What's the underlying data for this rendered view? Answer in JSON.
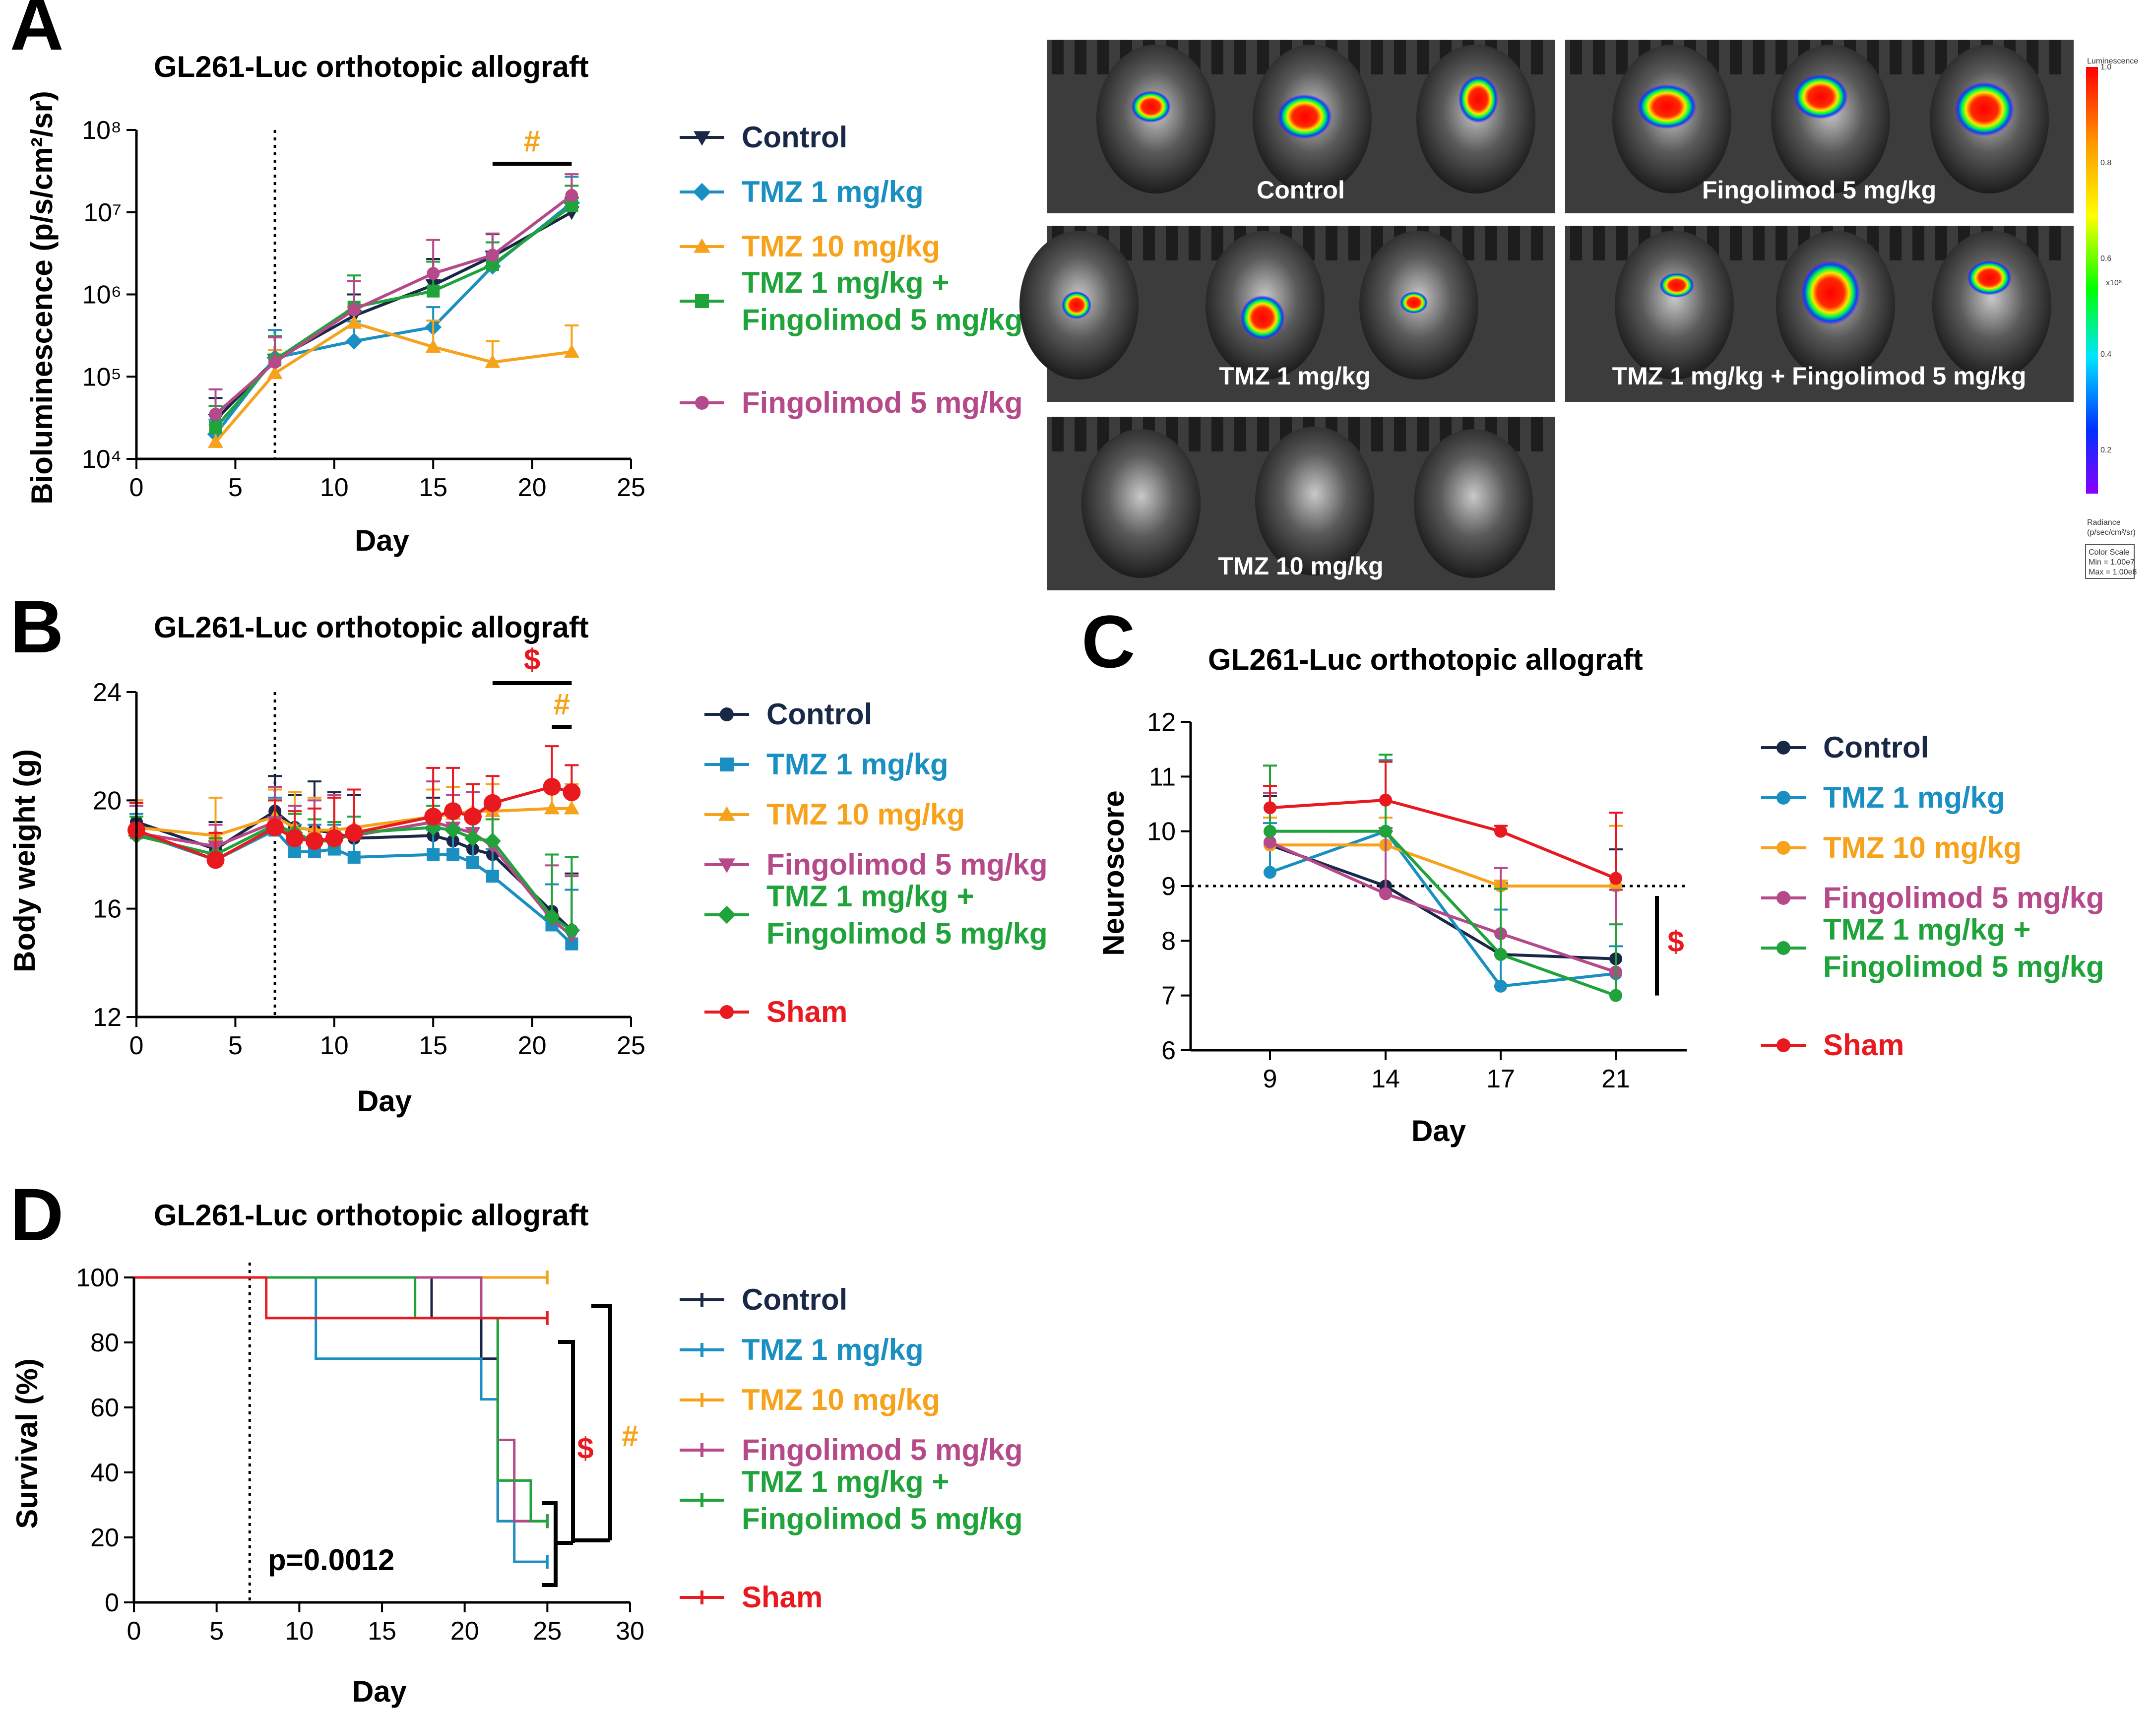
{
  "colors": {
    "control": "#1a2847",
    "tmz1": "#1a8fc2",
    "tmz10": "#f7a21b",
    "fingolimod": "#b5498a",
    "combo": "#1fa33a",
    "sham": "#e8191f",
    "axis": "#000000"
  },
  "chart_data": [
    {
      "id": "A",
      "type": "line",
      "letter": "A",
      "title": "GL261-Luc orthotopic allograft",
      "xlabel": "Day",
      "ylabel": "Bioluminescence (p/s/cm²/sr)",
      "yscale": "log",
      "xlim": [
        0,
        25
      ],
      "ylim": [
        10000,
        100000000
      ],
      "xticks": [
        0,
        5,
        10,
        15,
        20,
        25
      ],
      "ytick_labels": [
        "10⁴",
        "10⁵",
        "10⁶",
        "10⁷",
        "10⁸"
      ],
      "treatment_start_day": 7,
      "significance": [
        {
          "symbol": "#",
          "from": 18,
          "to": 22,
          "color": "#f7a21b"
        }
      ],
      "series": [
        {
          "name": "Control",
          "key": "control",
          "marker": "triangle-down",
          "x": [
            4,
            7,
            11,
            15,
            18,
            22
          ],
          "y": [
            30000,
            160000,
            550000,
            1300000,
            2900000,
            10000000
          ],
          "err": [
            25000,
            150000,
            450000,
            1400000,
            2500000,
            5000000
          ]
        },
        {
          "name": "TMZ 1 mg/kg",
          "key": "tmz1",
          "marker": "diamond",
          "x": [
            4,
            7,
            11,
            15,
            18,
            22
          ],
          "y": [
            20000,
            170000,
            270000,
            400000,
            2200000,
            13000000
          ],
          "err": [
            10000,
            200000,
            200000,
            300000,
            1000000,
            14000000
          ]
        },
        {
          "name": "TMZ 10 mg/kg",
          "key": "tmz10",
          "marker": "triangle-up",
          "x": [
            4,
            7,
            11,
            15,
            18,
            22
          ],
          "y": [
            16000,
            110000,
            450000,
            230000,
            150000,
            200000
          ],
          "err": [
            10000,
            100000,
            250000,
            250000,
            120000,
            220000
          ]
        },
        {
          "name": "TMZ 1 mg/kg + Fingolimod 5 mg/kg",
          "key": "combo",
          "marker": "square",
          "x": [
            4,
            7,
            11,
            15,
            18,
            22
          ],
          "y": [
            24000,
            160000,
            700000,
            1100000,
            2300000,
            12000000
          ],
          "err": [
            20000,
            150000,
            1000000,
            1400000,
            2000000,
            9000000
          ]
        },
        {
          "name": "Fingolimod 5 mg/kg",
          "key": "fingolimod",
          "marker": "circle",
          "x": [
            4,
            7,
            11,
            15,
            18,
            22
          ],
          "y": [
            35000,
            150000,
            650000,
            1800000,
            3000000,
            16000000
          ],
          "err": [
            35000,
            150000,
            800000,
            2800000,
            2500000,
            13000000
          ]
        }
      ],
      "legend": [
        {
          "label": "Control",
          "key": "control",
          "marker": "triangle-down"
        },
        {
          "label": "TMZ 1 mg/kg",
          "key": "tmz1",
          "marker": "diamond"
        },
        {
          "label": "TMZ 10 mg/kg",
          "key": "tmz10",
          "marker": "triangle-up"
        },
        {
          "label": [
            "TMZ 1 mg/kg +",
            "Fingolimod 5 mg/kg"
          ],
          "key": "combo",
          "marker": "square"
        },
        {
          "label": "Fingolimod 5 mg/kg",
          "key": "fingolimod",
          "marker": "circle"
        }
      ]
    },
    {
      "id": "B",
      "type": "line",
      "letter": "B",
      "title": "GL261-Luc orthotopic allograft",
      "xlabel": "Day",
      "ylabel": "Body weight (g)",
      "xlim": [
        0,
        25
      ],
      "ylim": [
        12,
        24
      ],
      "xticks": [
        0,
        5,
        10,
        15,
        20,
        25
      ],
      "yticks": [
        12,
        16,
        20,
        24
      ],
      "treatment_start_day": 7,
      "significance": [
        {
          "symbol": "$",
          "from": 18,
          "to": 22,
          "color": "#e8191f"
        },
        {
          "symbol": "#",
          "from": 21,
          "to": 22,
          "color": "#f7a21b"
        }
      ],
      "series": [
        {
          "name": "Control",
          "key": "control",
          "marker": "circle",
          "x": [
            0,
            4,
            7,
            8,
            9,
            10,
            11,
            15,
            16,
            17,
            18,
            21,
            22
          ],
          "y": [
            19.2,
            18.2,
            19.6,
            19.0,
            18.9,
            18.8,
            18.6,
            18.7,
            18.5,
            18.2,
            18.0,
            15.9,
            15.2
          ],
          "err": [
            0.8,
            1.0,
            1.3,
            1.2,
            1.8,
            1.5,
            1.6,
            1.4,
            1.3,
            1.3,
            1.6,
            2.1,
            2.1
          ]
        },
        {
          "name": "TMZ 1 mg/kg",
          "key": "tmz1",
          "marker": "square",
          "x": [
            0,
            4,
            7,
            8,
            9,
            10,
            11,
            15,
            16,
            17,
            18,
            21,
            22
          ],
          "y": [
            18.8,
            17.8,
            18.9,
            18.1,
            18.1,
            18.2,
            17.9,
            18.0,
            18.0,
            17.7,
            17.2,
            15.4,
            14.7
          ],
          "err": [
            0.7,
            0.6,
            1.2,
            1.0,
            1.0,
            0.9,
            1.0,
            0.9,
            1.0,
            0.9,
            1.0,
            1.5,
            2.0
          ]
        },
        {
          "name": "TMZ 10 mg/kg",
          "key": "tmz10",
          "marker": "triangle-up",
          "x": [
            0,
            4,
            7,
            8,
            9,
            10,
            11,
            15,
            16,
            17,
            18,
            21,
            22
          ],
          "y": [
            19.0,
            18.7,
            19.4,
            19.0,
            18.9,
            18.9,
            19.0,
            19.4,
            19.5,
            19.6,
            19.6,
            19.7,
            19.7
          ],
          "err": [
            1.0,
            1.4,
            1.0,
            1.3,
            1.2,
            1.3,
            1.4,
            1.0,
            1.0,
            1.0,
            1.0,
            1.0,
            0.9
          ]
        },
        {
          "name": "Fingolimod 5 mg/kg",
          "key": "fingolimod",
          "marker": "triangle-down",
          "x": [
            0,
            4,
            7,
            8,
            9,
            10,
            11,
            15,
            16,
            17,
            18,
            21,
            22
          ],
          "y": [
            18.8,
            18.3,
            19.2,
            18.6,
            18.5,
            18.6,
            18.7,
            19.2,
            19.0,
            18.8,
            18.3,
            15.6,
            15.0
          ],
          "err": [
            1.0,
            0.8,
            1.3,
            1.2,
            1.5,
            1.6,
            1.7,
            1.5,
            1.2,
            1.5,
            1.8,
            2.0,
            2.2
          ]
        },
        {
          "name": "TMZ 1 mg/kg + Fingolimod 5 mg/kg",
          "key": "combo",
          "marker": "diamond",
          "x": [
            0,
            4,
            7,
            8,
            9,
            10,
            11,
            15,
            16,
            17,
            18,
            21,
            22
          ],
          "y": [
            18.7,
            18.0,
            19.1,
            18.8,
            18.5,
            18.5,
            18.8,
            19.0,
            18.9,
            18.6,
            18.5,
            15.7,
            15.2
          ],
          "err": [
            0.7,
            0.6,
            0.9,
            0.7,
            0.8,
            0.7,
            0.6,
            0.8,
            0.8,
            0.8,
            0.8,
            2.3,
            2.7
          ]
        },
        {
          "name": "Sham",
          "key": "sham",
          "marker": "circle",
          "x": [
            0,
            4,
            7,
            8,
            9,
            10,
            11,
            15,
            16,
            17,
            18,
            21,
            22
          ],
          "y": [
            18.9,
            17.8,
            19.0,
            18.6,
            18.5,
            18.6,
            18.8,
            19.4,
            19.6,
            19.4,
            19.9,
            20.5,
            20.3
          ],
          "err": [
            1.0,
            1.0,
            1.0,
            1.0,
            1.2,
            1.5,
            1.6,
            1.8,
            1.6,
            1.2,
            1.0,
            1.5,
            1.0
          ]
        }
      ],
      "legend": [
        {
          "label": "Control",
          "key": "control",
          "marker": "circle"
        },
        {
          "label": "TMZ 1 mg/kg",
          "key": "tmz1",
          "marker": "square"
        },
        {
          "label": "TMZ 10 mg/kg",
          "key": "tmz10",
          "marker": "triangle-up"
        },
        {
          "label": "Fingolimod 5 mg/kg",
          "key": "fingolimod",
          "marker": "triangle-down"
        },
        {
          "label": [
            "TMZ 1 mg/kg +",
            "Fingolimod 5 mg/kg"
          ],
          "key": "combo",
          "marker": "diamond"
        },
        {
          "label": "Sham",
          "key": "sham",
          "marker": "circle"
        }
      ]
    },
    {
      "id": "C",
      "type": "line",
      "letter": "C",
      "title": "GL261-Luc orthotopic allograft",
      "xlabel": "Day",
      "ylabel": "Neuroscore",
      "ylim": [
        6,
        12
      ],
      "yticks": [
        6,
        7,
        8,
        9,
        10,
        11,
        12
      ],
      "categories": [
        "9",
        "14",
        "17",
        "21"
      ],
      "reference_line": 9,
      "significance": [
        {
          "symbol": "$",
          "color": "#e8191f",
          "from": 7.0,
          "to": 9.0
        }
      ],
      "series": [
        {
          "name": "Control",
          "key": "control",
          "marker": "circle",
          "values": [
            9.75,
            9.0,
            7.75,
            7.67
          ],
          "err": [
            0.9,
            1.0,
            1.3,
            2.0
          ]
        },
        {
          "name": "TMZ 1 mg/kg",
          "key": "tmz1",
          "marker": "circle",
          "values": [
            9.25,
            10.0,
            7.17,
            7.4
          ],
          "err": [
            0.9,
            1.3,
            1.4,
            0.5
          ]
        },
        {
          "name": "TMZ 10 mg/kg",
          "key": "tmz10",
          "marker": "circle",
          "values": [
            9.75,
            9.75,
            9.0,
            9.0
          ],
          "err": [
            0.5,
            0.5,
            0.1,
            1.1
          ]
        },
        {
          "name": "Fingolimod 5 mg/kg",
          "key": "fingolimod",
          "marker": "circle",
          "values": [
            9.8,
            8.86,
            8.13,
            7.43
          ],
          "err": [
            0.9,
            1.2,
            1.2,
            1.5
          ]
        },
        {
          "name": "TMZ 1 mg/kg + Fingolimod 5 mg/kg",
          "key": "combo",
          "marker": "circle",
          "values": [
            10.0,
            10.0,
            7.75,
            7.0
          ],
          "err": [
            1.2,
            1.4,
            1.2,
            1.3
          ]
        },
        {
          "name": "Sham",
          "key": "sham",
          "marker": "circle",
          "values": [
            10.43,
            10.57,
            10.0,
            9.14
          ],
          "err": [
            0.4,
            0.7,
            0.1,
            1.2
          ]
        }
      ],
      "legend": [
        {
          "label": "Control",
          "key": "control",
          "marker": "circle"
        },
        {
          "label": "TMZ 1 mg/kg",
          "key": "tmz1",
          "marker": "circle"
        },
        {
          "label": "TMZ 10 mg/kg",
          "key": "tmz10",
          "marker": "circle"
        },
        {
          "label": "Fingolimod 5 mg/kg",
          "key": "fingolimod",
          "marker": "circle"
        },
        {
          "label": [
            "TMZ 1 mg/kg +",
            "Fingolimod 5 mg/kg"
          ],
          "key": "combo",
          "marker": "circle"
        },
        {
          "label": "Sham",
          "key": "sham",
          "marker": "circle"
        }
      ]
    },
    {
      "id": "D",
      "type": "line",
      "subtype": "kaplan-meier",
      "letter": "D",
      "title": "GL261-Luc orthotopic allograft",
      "xlabel": "Day",
      "ylabel": "Survival (%)",
      "xlim": [
        0,
        30
      ],
      "ylim": [
        0,
        100
      ],
      "xticks": [
        0,
        5,
        10,
        15,
        20,
        25,
        30
      ],
      "yticks": [
        0,
        20,
        40,
        60,
        80,
        100
      ],
      "treatment_start_day": 7,
      "p_value": "p=0.0012",
      "significance": [
        {
          "symbol": "$",
          "color": "#e8191f"
        },
        {
          "symbol": "#",
          "color": "#f7a21b"
        }
      ],
      "series": [
        {
          "name": "Control",
          "key": "control",
          "x": [
            0,
            18,
            21,
            22,
            25
          ],
          "y": [
            100,
            87.5,
            75,
            25,
            25
          ]
        },
        {
          "name": "TMZ 1 mg/kg",
          "key": "tmz1",
          "x": [
            0,
            11,
            21,
            22,
            23,
            25
          ],
          "y": [
            100,
            75,
            62.5,
            25,
            12.5,
            12.5
          ]
        },
        {
          "name": "TMZ 10 mg/kg",
          "key": "tmz10",
          "x": [
            0,
            25
          ],
          "y": [
            100,
            100
          ]
        },
        {
          "name": "Fingolimod 5 mg/kg",
          "key": "fingolimod",
          "x": [
            0,
            21,
            22,
            23,
            24,
            25
          ],
          "y": [
            100,
            87.5,
            50,
            25,
            25,
            25
          ]
        },
        {
          "name": "TMZ 1 mg/kg + Fingolimod 5 mg/kg",
          "key": "combo",
          "x": [
            0,
            17,
            22,
            24,
            25
          ],
          "y": [
            100,
            87.5,
            37.5,
            25,
            25
          ]
        },
        {
          "name": "Sham",
          "key": "sham",
          "x": [
            0,
            8,
            25
          ],
          "y": [
            100,
            87.5,
            87.5
          ]
        }
      ],
      "legend": [
        {
          "label": "Control",
          "key": "control",
          "marker": "tick"
        },
        {
          "label": "TMZ 1 mg/kg",
          "key": "tmz1",
          "marker": "tick"
        },
        {
          "label": "TMZ 10 mg/kg",
          "key": "tmz10",
          "marker": "tick"
        },
        {
          "label": "Fingolimod 5 mg/kg",
          "key": "fingolimod",
          "marker": "tick"
        },
        {
          "label": [
            "TMZ 1 mg/kg +",
            "Fingolimod 5 mg/kg"
          ],
          "key": "combo",
          "marker": "tick"
        },
        {
          "label": "Sham",
          "key": "sham",
          "marker": "tick"
        }
      ]
    }
  ],
  "imaging_panel": {
    "images": [
      {
        "label": "Control"
      },
      {
        "label": "Fingolimod 5 mg/kg"
      },
      {
        "label": "TMZ 1 mg/kg"
      },
      {
        "label": "TMZ 1 mg/kg + Fingolimod 5 mg/kg"
      },
      {
        "label": "TMZ 10 mg/kg"
      }
    ],
    "colorbar": {
      "top_label": "Luminescence",
      "tick_labels": [
        "1.0",
        "0.8",
        "0.6",
        "0.4",
        "0.2"
      ],
      "scale_unit": "x10⁸",
      "radiance_label": "Radiance",
      "radiance_unit": "(p/sec/cm²/sr)",
      "color_scale_title": "Color Scale",
      "color_scale_min": "Min = 1.00e7",
      "color_scale_max": "Max = 1.00e8"
    }
  }
}
